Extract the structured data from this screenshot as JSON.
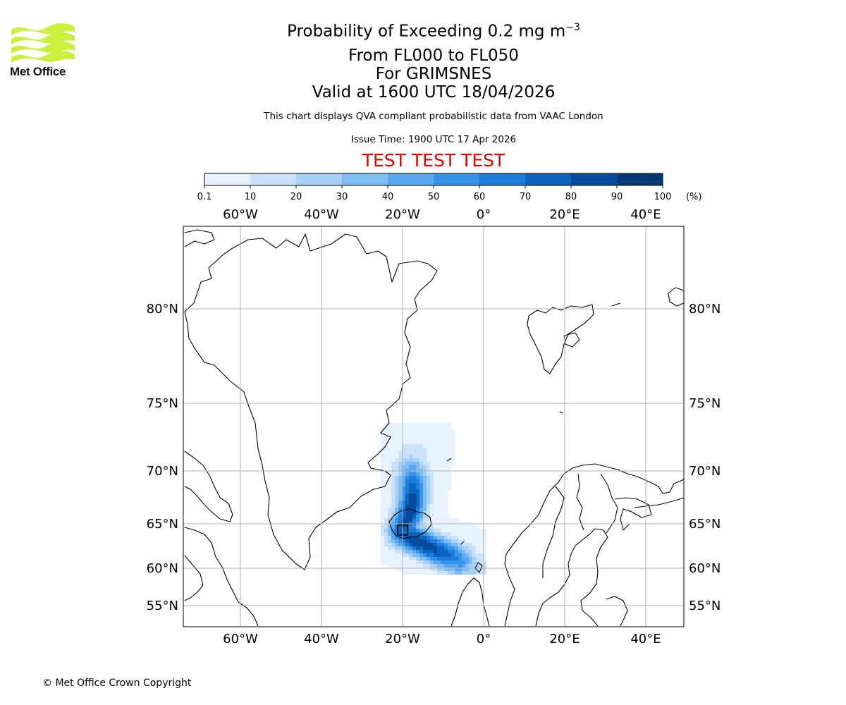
{
  "branding": {
    "logo_text": "Met Office",
    "logo_color": "#c8f03c",
    "copyright": "© Met Office Crown Copyright"
  },
  "header": {
    "title_prefix": "Probability of Exceeding 0.2 mg m",
    "title_exponent": "−3",
    "flight_levels": "From FL000 to FL050",
    "location": "For GRIMSNES",
    "valid_time": "Valid at 1600 UTC 18/04/2026",
    "description": "This chart displays QVA compliant probabilistic data from VAAC London",
    "issue_time": "Issue Time: 1900 UTC 17 Apr 2026",
    "test_banner": "TEST TEST TEST",
    "test_color": "#e00000"
  },
  "colorbar": {
    "ticks": [
      "0.1",
      "10",
      "20",
      "30",
      "40",
      "50",
      "60",
      "70",
      "80",
      "90",
      "100"
    ],
    "unit": "(%)",
    "colors": [
      "#e8f2fd",
      "#c9e2fa",
      "#a6d0f6",
      "#7fbcf3",
      "#58a8f0",
      "#3594ea",
      "#1c7ddb",
      "#0c63c0",
      "#064c9e",
      "#033977",
      "#022656"
    ]
  },
  "map": {
    "lon_labels": [
      "60°W",
      "40°W",
      "20°W",
      "0°",
      "20°E",
      "40°E"
    ],
    "lat_labels": [
      "80°N",
      "75°N",
      "70°N",
      "65°N",
      "60°N",
      "55°N"
    ],
    "source_marker": "Grimsnes volcano (square marker)"
  },
  "chart_data": {
    "type": "heatmap",
    "title": "Probability of Exceeding 0.2 mg m−3",
    "variable": "probability",
    "unit": "%",
    "levels": [
      0.1,
      10,
      20,
      30,
      40,
      50,
      60,
      70,
      80,
      90,
      100
    ],
    "lon_ticks": [
      -60,
      -40,
      -20,
      0,
      20,
      40
    ],
    "lat_ticks": [
      80,
      75,
      70,
      65,
      60,
      55
    ],
    "lon_range": [
      -74,
      48
    ],
    "lat_range": [
      53,
      84
    ],
    "source": {
      "lon": -20.0,
      "lat": 64.3
    },
    "plume_branches": [
      {
        "name": "north",
        "points": [
          {
            "lon": -20,
            "lat": 64.3,
            "p": 80
          },
          {
            "lon": -19,
            "lat": 65.3,
            "p": 85
          },
          {
            "lon": -18,
            "lat": 66.3,
            "p": 90
          },
          {
            "lon": -17.5,
            "lat": 67.6,
            "p": 85
          },
          {
            "lon": -17.5,
            "lat": 68.9,
            "p": 70
          },
          {
            "lon": -17.8,
            "lat": 70.0,
            "p": 45
          },
          {
            "lon": -17.5,
            "lat": 71.0,
            "p": 20
          },
          {
            "lon": -16.5,
            "lat": 72.0,
            "p": 8
          }
        ]
      },
      {
        "name": "south-east",
        "points": [
          {
            "lon": -20,
            "lat": 64.0,
            "p": 75
          },
          {
            "lon": -17,
            "lat": 63.2,
            "p": 90
          },
          {
            "lon": -13,
            "lat": 62.3,
            "p": 85
          },
          {
            "lon": -9,
            "lat": 61.5,
            "p": 75
          },
          {
            "lon": -6,
            "lat": 60.8,
            "p": 55
          },
          {
            "lon": -3.5,
            "lat": 60.2,
            "p": 25
          }
        ]
      }
    ]
  }
}
